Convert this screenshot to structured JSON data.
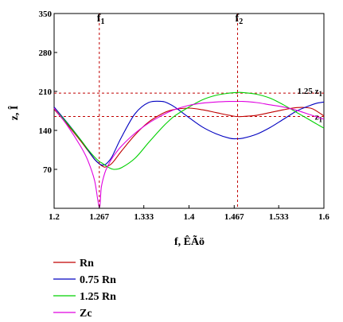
{
  "chart_data": {
    "type": "line",
    "xlabel": "f, ÊÃö",
    "ylabel": "z, Î",
    "xlim": [
      1.2,
      1.6
    ],
    "ylim": [
      0,
      350
    ],
    "x_ticks": [
      "1.2",
      "1.267",
      "1.333",
      "1.4",
      "1.467",
      "1.533",
      "1.6"
    ],
    "y_ticks": [
      "70",
      "140",
      "210",
      "280",
      "350"
    ],
    "markers": [
      {
        "label_main": "f",
        "label_sub": "1",
        "x": 1.267
      },
      {
        "label_main": "f",
        "label_sub": "2",
        "x": 1.472
      }
    ],
    "reference_lines": [
      {
        "label_main": "1.25 z",
        "label_sub": "1",
        "y": 207
      },
      {
        "label_main": "z",
        "label_sub": "1",
        "y": 165
      }
    ],
    "x": [
      1.2,
      1.22,
      1.24,
      1.25,
      1.26,
      1.267,
      1.27,
      1.275,
      1.28,
      1.285,
      1.29,
      1.3,
      1.32,
      1.34,
      1.36,
      1.37,
      1.38,
      1.4,
      1.42,
      1.44,
      1.46,
      1.47,
      1.48,
      1.5,
      1.52,
      1.54,
      1.56,
      1.58,
      1.59,
      1.6
    ],
    "series": [
      {
        "name": "Rn",
        "color": "#c00000",
        "values": [
          178,
          150,
          120,
          104,
          88,
          80,
          77,
          74,
          76,
          80,
          87,
          103,
          132,
          155,
          170,
          175,
          178,
          180,
          177,
          172,
          167,
          165,
          165,
          167,
          172,
          177,
          181,
          180,
          174,
          166
        ]
      },
      {
        "name": "0.75 Rn",
        "color": "#0000c0",
        "values": [
          182,
          153,
          122,
          105,
          88,
          80,
          78,
          78,
          83,
          91,
          103,
          128,
          170,
          190,
          192,
          188,
          181,
          163,
          146,
          134,
          126,
          125,
          126,
          133,
          145,
          160,
          175,
          185,
          189,
          191
        ]
      },
      {
        "name": "1.25 Rn",
        "color": "#00d000",
        "values": [
          180,
          152,
          122,
          106,
          92,
          84,
          82,
          78,
          74,
          71,
          70,
          73,
          90,
          118,
          145,
          157,
          167,
          182,
          195,
          203,
          207,
          208,
          208,
          205,
          198,
          186,
          172,
          158,
          151,
          144
        ]
      },
      {
        "name": "Zc",
        "color": "#e000e0",
        "values": [
          180,
          148,
          110,
          86,
          50,
          2,
          38,
          63,
          77,
          88,
          97,
          112,
          135,
          153,
          167,
          173,
          178,
          185,
          189,
          191,
          192,
          192,
          192,
          190,
          186,
          182,
          176,
          168,
          164,
          160
        ]
      }
    ],
    "legend_position": "bottom-left",
    "grid": false
  }
}
